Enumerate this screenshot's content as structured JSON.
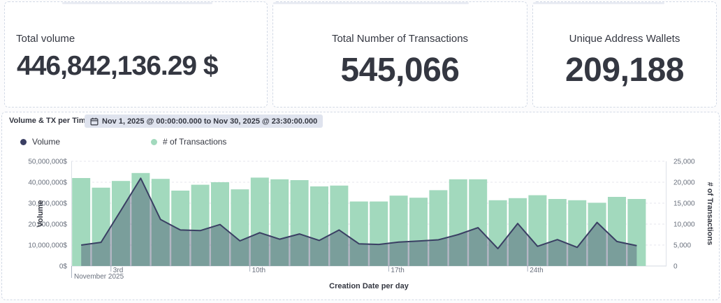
{
  "kpi_cards": [
    {
      "label": "Total volume",
      "value": "446,842,136.29 $"
    },
    {
      "label": "Total Number of Transactions",
      "value": "545,066"
    },
    {
      "label": "Unique Address Wallets",
      "value": "209,188"
    }
  ],
  "chart_panel": {
    "title": "Volume & TX per Time",
    "time_badge": "Nov 1, 2025 @ 00:00:00.000 to Nov 30, 2025 @ 23:30:00.000",
    "legend": [
      {
        "label": "Volume",
        "color": "#3a3f63"
      },
      {
        "label": "# of Transactions",
        "color": "#a2d9bd"
      }
    ]
  },
  "chart_data": {
    "type": "combo: bars (right axis) + area line (left axis)",
    "title": "Volume & TX per Time",
    "xlabel": "Creation Date per day",
    "x_month_label": "November 2025",
    "x_domain_days": 30,
    "x_ticks": [
      {
        "day": 3,
        "label": "3rd"
      },
      {
        "day": 10,
        "label": "10th"
      },
      {
        "day": 17,
        "label": "17th"
      },
      {
        "day": 24,
        "label": "24th"
      }
    ],
    "days": [
      1,
      2,
      3,
      4,
      5,
      6,
      7,
      8,
      9,
      10,
      11,
      12,
      13,
      14,
      15,
      16,
      17,
      18,
      19,
      20,
      21,
      22,
      23,
      24,
      25,
      26,
      27,
      28,
      29
    ],
    "series": [
      {
        "name": "# of Transactions",
        "type": "bar",
        "axis": "right",
        "color": "#a2d9bd",
        "values": [
          21000,
          18700,
          20300,
          22200,
          20800,
          18000,
          19400,
          20000,
          18300,
          21100,
          20700,
          20500,
          19000,
          19200,
          15400,
          15400,
          16800,
          16300,
          18100,
          20700,
          20700,
          15700,
          16200,
          16900,
          16000,
          15700,
          15100,
          16500,
          16000
        ]
      },
      {
        "name": "Volume",
        "type": "area-line",
        "axis": "left",
        "color": "#3a3f63",
        "fill": "rgba(58,63,99,0.38)",
        "values": [
          10000000,
          11300000,
          26500000,
          41900000,
          22200000,
          17200000,
          16900000,
          19800000,
          12000000,
          15900000,
          12800000,
          15300000,
          12200000,
          17200000,
          10600000,
          10300000,
          11400000,
          11900000,
          12500000,
          15000000,
          18300000,
          8300000,
          20300000,
          9400000,
          12600000,
          8900000,
          20800000,
          11700000,
          9700000
        ]
      }
    ],
    "y_left": {
      "title": "Volume",
      "max": 50000000,
      "tick_labels": [
        "0$",
        "10,000,000$",
        "20,000,000$",
        "30,000,000$",
        "40,000,000$",
        "50,000,000$"
      ]
    },
    "y_right": {
      "title": "# of Transactions",
      "max": 25000,
      "tick_labels": [
        "0",
        "5,000",
        "10,000",
        "15,000",
        "20,000",
        "25,000"
      ]
    },
    "grid": {
      "horizontal": true,
      "style": "dashed"
    },
    "legend_position": "top"
  },
  "colors": {
    "panel_border": "#d3dae6",
    "bar": "#a2d9bd",
    "line": "#3a3f63",
    "area_fill": "rgba(58,63,99,0.38)",
    "axis_text": "#69707d",
    "axis_title": "#343741",
    "grid": "#e4e6ee",
    "badge_bg": "#dfe3ee"
  }
}
